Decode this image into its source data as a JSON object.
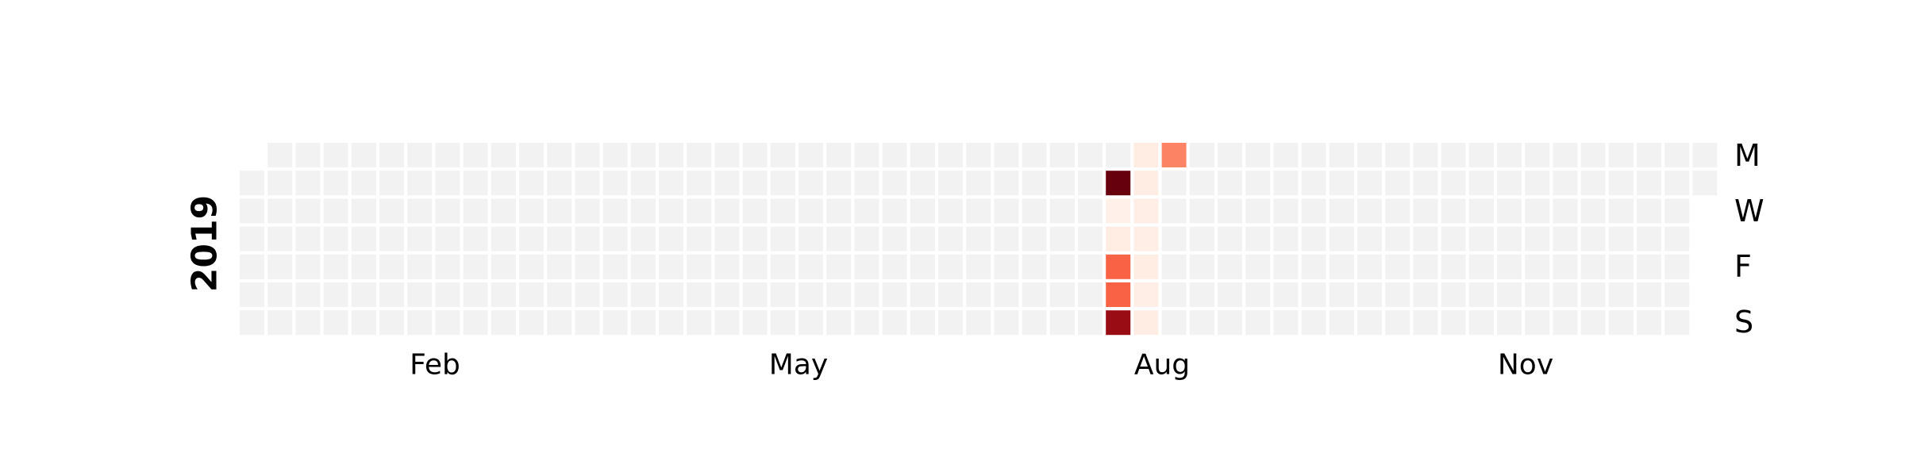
{
  "chart_data": {
    "type": "heatmap",
    "year": "2019",
    "colormap": "Reds",
    "empty_color": "#f2f2f2",
    "month_ticks": [
      "Feb",
      "May",
      "Aug",
      "Nov"
    ],
    "weekday_ticks": [
      "M",
      "W",
      "F",
      "S"
    ],
    "cells": [
      {
        "date": "2019-08-06",
        "value": 1.0
      },
      {
        "date": "2019-08-10",
        "value": 0.52
      },
      {
        "date": "2019-08-11",
        "value": 0.9
      },
      {
        "date": "2019-08-07",
        "value": 0.03
      },
      {
        "date": "2019-08-08",
        "value": 0.05
      },
      {
        "date": "2019-08-09",
        "value": 0.52
      },
      {
        "date": "2019-08-12",
        "value": 0.05
      },
      {
        "date": "2019-08-13",
        "value": 0.05
      },
      {
        "date": "2019-08-14",
        "value": 0.04
      },
      {
        "date": "2019-08-15",
        "value": 0.04
      },
      {
        "date": "2019-08-16",
        "value": 0.05
      },
      {
        "date": "2019-08-17",
        "value": 0.04
      },
      {
        "date": "2019-08-18",
        "value": 0.05
      },
      {
        "date": "2019-08-19",
        "value": 0.42
      },
      {
        "date": "2019-08-10",
        "value": 0.52
      }
    ],
    "overrides": [
      {
        "date": "2019-08-10",
        "value": 0.52
      },
      {
        "date": "2019-08-11",
        "value": 0.9
      }
    ]
  }
}
